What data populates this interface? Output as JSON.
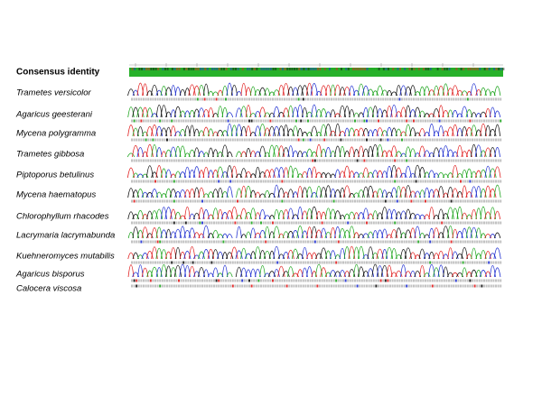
{
  "consensus_label": "Consensus identity",
  "samples": [
    "Trametes versicolor",
    "Agaricus geesterani",
    "Mycena polygramma",
    "Trametes gibbosa",
    "Piptoporus betulinus",
    "Mycena haematopus",
    "Chlorophyllum rhacodes",
    "Lacrymaria lacrymabunda",
    "Kuehneromyces mutabilis",
    "Agaricus bisporus",
    "Calocera viscosa"
  ]
}
